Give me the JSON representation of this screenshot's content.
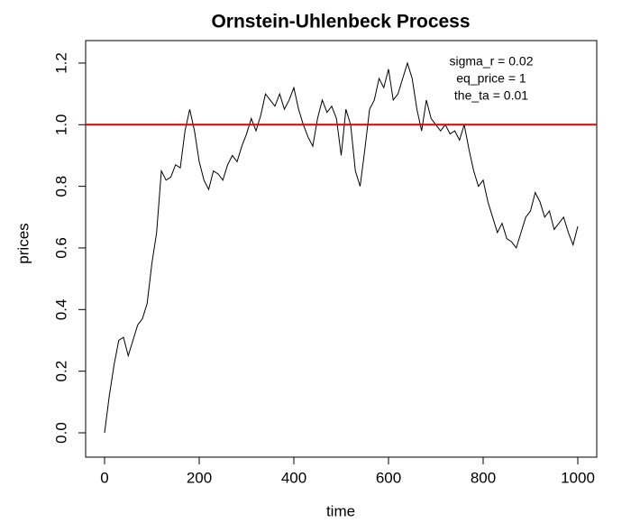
{
  "chart_data": {
    "type": "line",
    "title": "Ornstein-Uhlenbeck Process",
    "x_label": "time",
    "y_label": "prices",
    "x": [
      0,
      10,
      20,
      30,
      40,
      50,
      60,
      70,
      80,
      90,
      100,
      110,
      120,
      130,
      140,
      150,
      160,
      170,
      180,
      190,
      200,
      210,
      220,
      230,
      240,
      250,
      260,
      270,
      280,
      290,
      300,
      310,
      320,
      330,
      340,
      350,
      360,
      370,
      380,
      390,
      400,
      410,
      420,
      430,
      440,
      450,
      460,
      470,
      480,
      490,
      500,
      510,
      520,
      530,
      540,
      550,
      560,
      570,
      580,
      590,
      600,
      610,
      620,
      630,
      640,
      650,
      660,
      670,
      680,
      690,
      700,
      710,
      720,
      730,
      740,
      750,
      760,
      770,
      780,
      790,
      800,
      810,
      820,
      830,
      840,
      850,
      860,
      870,
      880,
      890,
      900,
      910,
      920,
      930,
      940,
      950,
      960,
      970,
      980,
      990,
      1000
    ],
    "values": [
      0.0,
      0.12,
      0.22,
      0.3,
      0.31,
      0.25,
      0.3,
      0.35,
      0.37,
      0.42,
      0.55,
      0.65,
      0.85,
      0.82,
      0.83,
      0.87,
      0.86,
      0.98,
      1.05,
      0.98,
      0.88,
      0.82,
      0.79,
      0.85,
      0.84,
      0.82,
      0.87,
      0.9,
      0.88,
      0.93,
      0.97,
      1.02,
      0.98,
      1.03,
      1.1,
      1.08,
      1.06,
      1.1,
      1.05,
      1.08,
      1.12,
      1.05,
      1.0,
      0.96,
      0.93,
      1.02,
      1.08,
      1.04,
      1.06,
      1.02,
      0.9,
      1.05,
      1.0,
      0.85,
      0.8,
      0.92,
      1.05,
      1.08,
      1.15,
      1.12,
      1.18,
      1.08,
      1.1,
      1.15,
      1.2,
      1.15,
      1.05,
      0.98,
      1.08,
      1.02,
      1.0,
      0.98,
      1.0,
      0.97,
      0.98,
      0.95,
      1.0,
      0.92,
      0.85,
      0.8,
      0.82,
      0.75,
      0.7,
      0.65,
      0.68,
      0.63,
      0.62,
      0.6,
      0.65,
      0.7,
      0.72,
      0.78,
      0.75,
      0.7,
      0.72,
      0.66,
      0.68,
      0.7,
      0.65,
      0.61,
      0.67
    ],
    "color": "#000000",
    "hline": {
      "value": 1,
      "color": "#dd0000"
    },
    "annotations": [
      "sigma_r = 0.02",
      "eq_price = 1",
      "the_ta = 0.01"
    ],
    "xlim": [
      -40,
      1040
    ],
    "ylim": [
      -0.079,
      1.273
    ],
    "xticks": [
      0,
      200,
      400,
      600,
      800,
      1000
    ],
    "yticks": [
      {
        "value": 0,
        "label": "0.0"
      },
      {
        "value": 0.2,
        "label": "0.2"
      },
      {
        "value": 0.4,
        "label": "0.4"
      },
      {
        "value": 0.6,
        "label": "0.6"
      },
      {
        "value": 0.8,
        "label": "0.8"
      },
      {
        "value": 1,
        "label": "1.0"
      },
      {
        "value": 1.2,
        "label": "1.2"
      }
    ]
  }
}
